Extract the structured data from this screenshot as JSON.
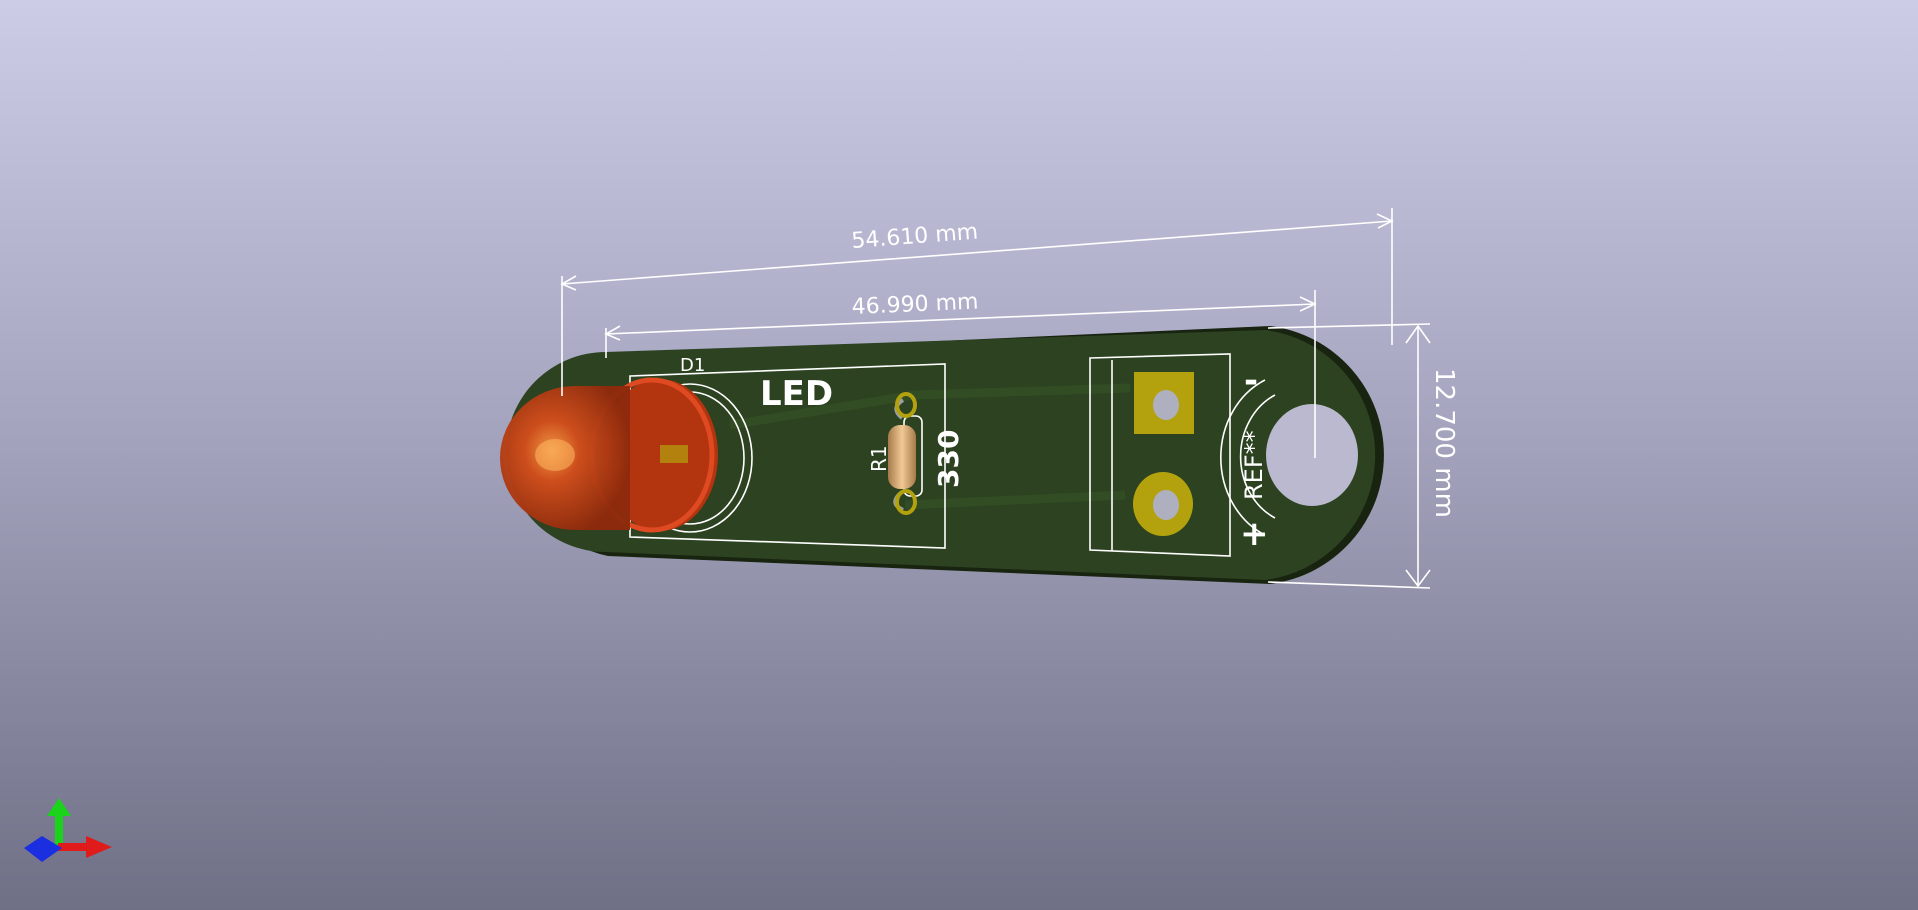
{
  "viewer": {
    "board_name": "LED"
  },
  "dimensions": {
    "overall_length": "54.610 mm",
    "hole_spacing": "46.990 mm",
    "board_width": "12.700 mm"
  },
  "silkscreen": {
    "led_ref": "D1",
    "board_label": "LED",
    "resistor_ref": "R1",
    "resistor_value": "330",
    "mount_ref": "REF**",
    "minus_sign": "-",
    "plus_sign": "+"
  },
  "colors": {
    "board": "#2c4220",
    "board_edge": "#18240f",
    "silkscreen": "#ffffff",
    "pad": "#b3a20e",
    "led": "#c23a14",
    "resistor": "#d9b07a",
    "axis_x": "#e01b1b",
    "axis_y": "#1bd31b",
    "axis_z": "#1b2ee0"
  },
  "axes": {
    "icons": [
      "x-axis-arrow-icon",
      "y-axis-arrow-icon",
      "z-axis-arrow-icon"
    ]
  }
}
